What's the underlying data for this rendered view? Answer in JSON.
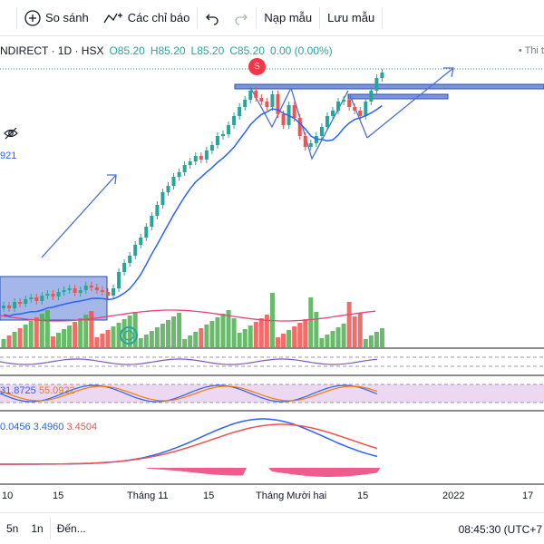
{
  "toolbar": {
    "compare_label": "So sánh",
    "indicators_label": "Các chỉ báo",
    "load_label": "Nạp mẫu",
    "save_label": "Lưu mẫu"
  },
  "legend": {
    "symbol": "NDIRECT · 1D · HSX",
    "open": "O85.20",
    "high": "H85.20",
    "low": "L85.20",
    "close": "C85.20",
    "change": "0.00 (0.00%)"
  },
  "top_right": "• Thi t",
  "partial_value": "921",
  "signal_badge": "S",
  "stoch_values": {
    "k": "31.8725",
    "d": "55.0922"
  },
  "macd_values": {
    "macd": "0.0456",
    "signal": "3.4960",
    "hist": "3.4504"
  },
  "time_axis": [
    "10",
    "15",
    "Tháng 11",
    "15",
    "Tháng Mười hai",
    "15",
    "2022",
    "17"
  ],
  "bottom": {
    "range_5n": "5n",
    "range_1n": "1n",
    "goto_label": "Đến...",
    "clock": "08:45:30 (UTC+7"
  },
  "colors": {
    "up": "#26a69a",
    "down": "#ef5350",
    "ma": "#2962ff",
    "zone": "#5b7bd5"
  }
}
